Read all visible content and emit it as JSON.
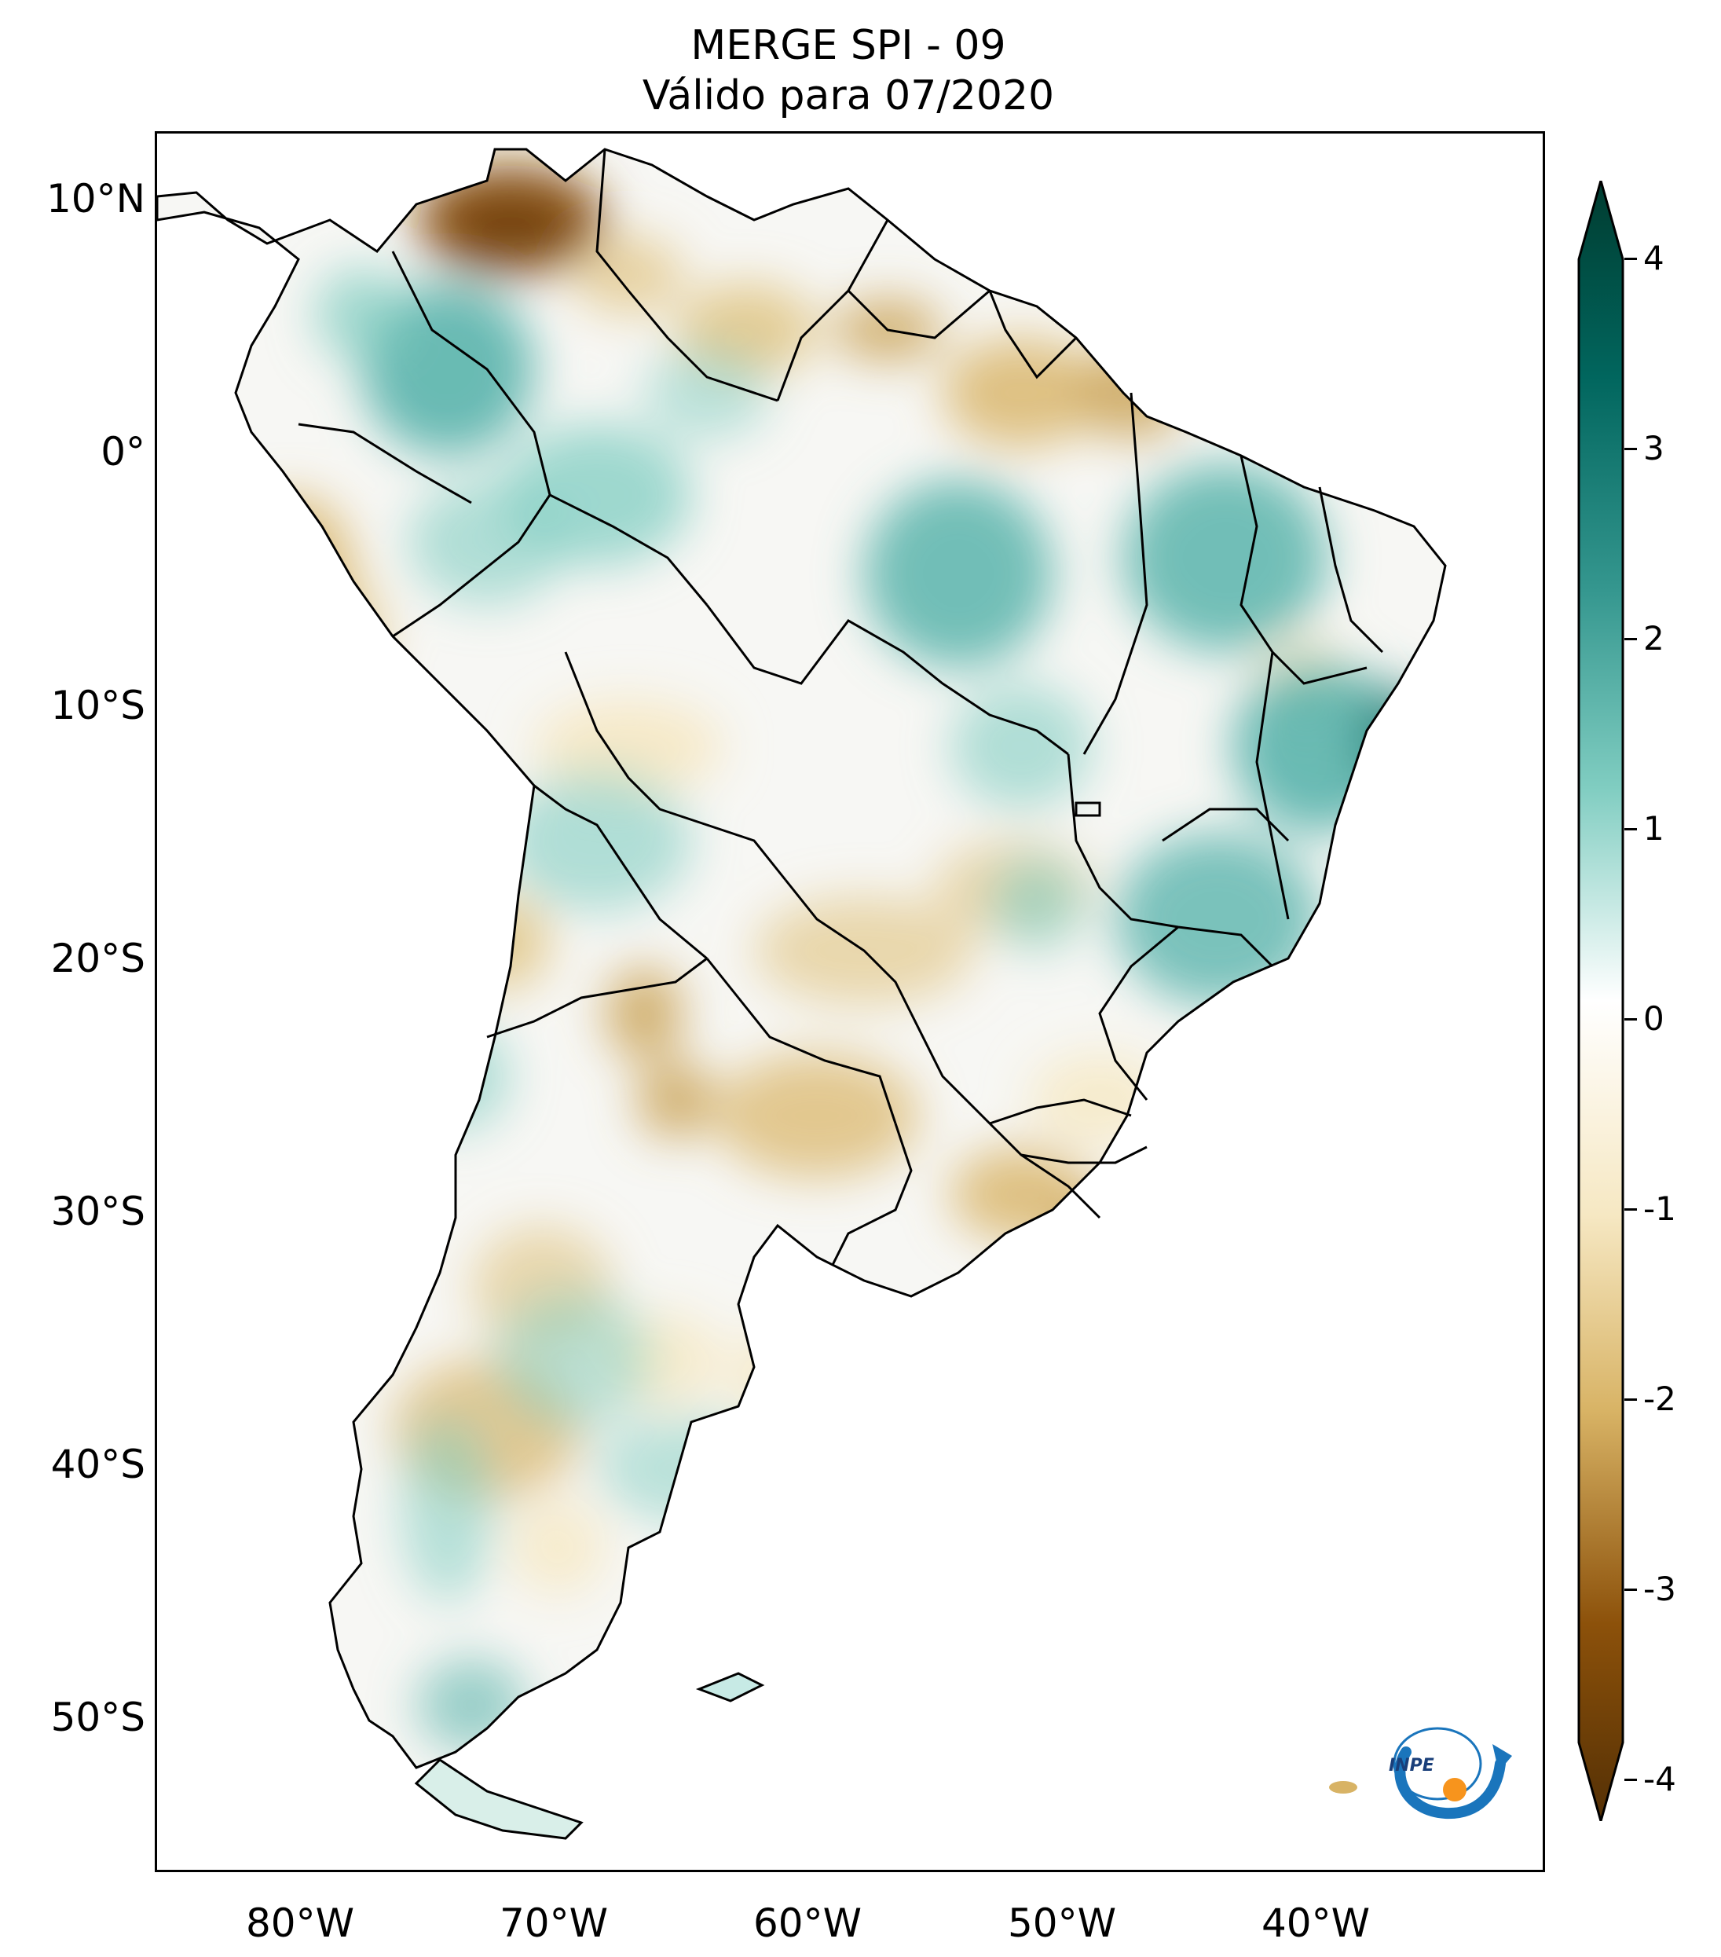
{
  "title": {
    "line1": "MERGE   SPI - 09",
    "line2": "Válido para 07/2020"
  },
  "axes": {
    "lat_labels": [
      "10°N",
      "0°",
      "10°S",
      "20°S",
      "30°S",
      "40°S",
      "50°S"
    ],
    "lon_labels": [
      "80°W",
      "70°W",
      "60°W",
      "50°W",
      "40°W"
    ]
  },
  "colorbar": {
    "ticks": [
      "4",
      "3",
      "2",
      "1",
      "0",
      "-1",
      "-2",
      "-3",
      "-4"
    ],
    "extend": "both",
    "colors": {
      "max": "#003c30",
      "high": "#01665e",
      "mid_high": "#5ab4ac",
      "low_positive": "#c7eae5",
      "zero": "#ffffff",
      "low_negative": "#f6e8c3",
      "mid_low": "#d8b365",
      "low": "#8c510a",
      "min": "#543005"
    }
  },
  "logo": {
    "text": "INPE",
    "colors": {
      "arrow": "#1a75bc",
      "dot": "#f7941d"
    }
  }
}
